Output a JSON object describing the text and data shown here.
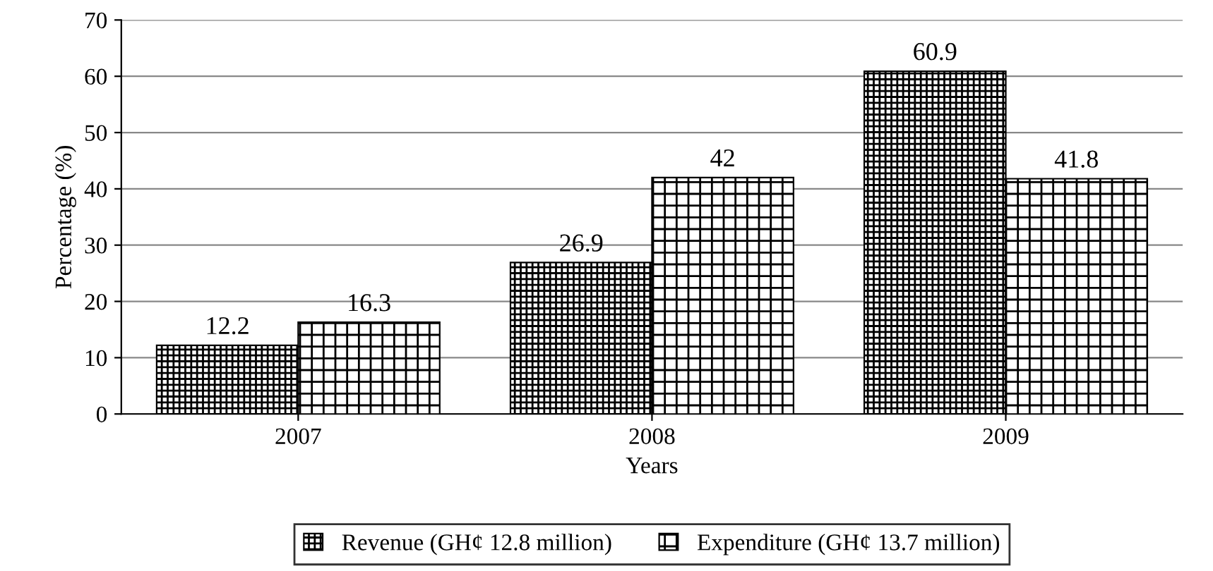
{
  "chart_data": {
    "type": "bar",
    "xlabel": "Years",
    "ylabel": "Percentage (%)",
    "categories": [
      "2007",
      "2008",
      "2009"
    ],
    "series": [
      {
        "name": "Revenue (GH¢ 12.8 million)",
        "color": "#000000",
        "values": [
          12.2,
          26.9,
          60.9
        ]
      },
      {
        "name": "Expenditure (GH¢ 13.7 million)",
        "color": "#000000",
        "values": [
          16.3,
          42,
          41.8
        ]
      }
    ],
    "ylim": [
      0,
      70
    ],
    "yticks": [
      0,
      10,
      20,
      30,
      40,
      50,
      60,
      70
    ],
    "grid": "y",
    "legend": "bottom",
    "data_labels": true
  }
}
